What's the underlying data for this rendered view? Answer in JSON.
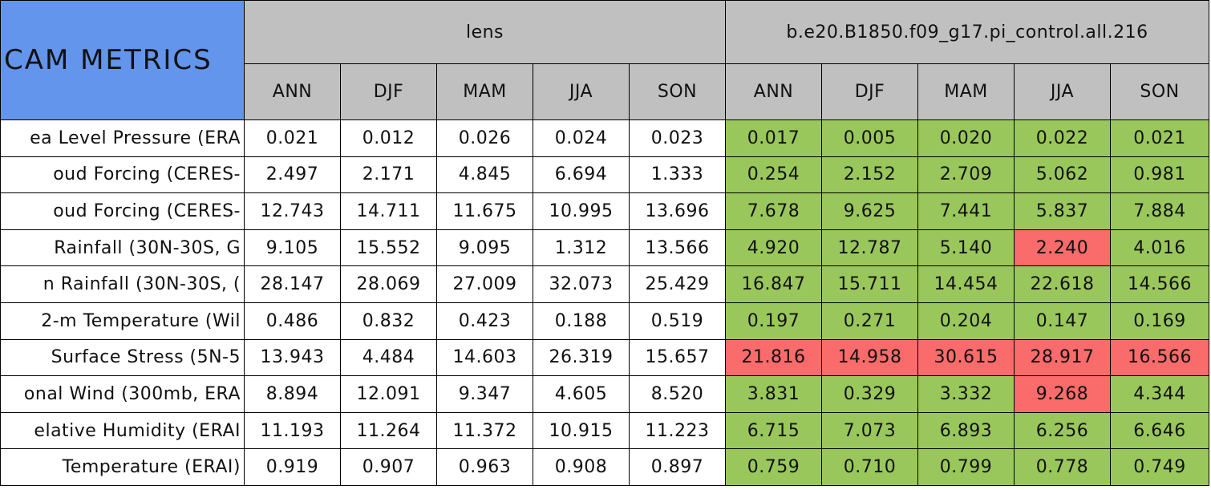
{
  "header": {
    "title": "CAM METRICS",
    "groups": [
      "lens",
      "b.e20.B1850.f09_g17.pi_control.all.216"
    ],
    "seasons": [
      "ANN",
      "DJF",
      "MAM",
      "JJA",
      "SON",
      "ANN",
      "DJF",
      "MAM",
      "JJA",
      "SON"
    ]
  },
  "colors": {
    "title_fill": "#6395ec",
    "header_fill": "#c0c0c0",
    "plain_fill": "#ffffff",
    "good_fill": "#9ac75c",
    "bad_fill": "#fa6b6b"
  },
  "table": {
    "rows": [
      {
        "label": "ea Level Pressure (ERA",
        "values": [
          "0.021",
          "0.012",
          "0.026",
          "0.024",
          "0.023",
          "0.017",
          "0.005",
          "0.020",
          "0.022",
          "0.021"
        ],
        "fills": [
          "plain",
          "plain",
          "plain",
          "plain",
          "plain",
          "good",
          "good",
          "good",
          "good",
          "good"
        ]
      },
      {
        "label": "oud Forcing (CERES-",
        "values": [
          "2.497",
          "2.171",
          "4.845",
          "6.694",
          "1.333",
          "0.254",
          "2.152",
          "2.709",
          "5.062",
          "0.981"
        ],
        "fills": [
          "plain",
          "plain",
          "plain",
          "plain",
          "plain",
          "good",
          "good",
          "good",
          "good",
          "good"
        ]
      },
      {
        "label": "oud Forcing (CERES-",
        "values": [
          "12.743",
          "14.711",
          "11.675",
          "10.995",
          "13.696",
          "7.678",
          "9.625",
          "7.441",
          "5.837",
          "7.884"
        ],
        "fills": [
          "plain",
          "plain",
          "plain",
          "plain",
          "plain",
          "good",
          "good",
          "good",
          "good",
          "good"
        ]
      },
      {
        "label": "Rainfall (30N-30S, G",
        "values": [
          "9.105",
          "15.552",
          "9.095",
          "1.312",
          "13.566",
          "4.920",
          "12.787",
          "5.140",
          "2.240",
          "4.016"
        ],
        "fills": [
          "plain",
          "plain",
          "plain",
          "plain",
          "plain",
          "good",
          "good",
          "good",
          "bad",
          "good"
        ]
      },
      {
        "label": "n Rainfall (30N-30S, (",
        "values": [
          "28.147",
          "28.069",
          "27.009",
          "32.073",
          "25.429",
          "16.847",
          "15.711",
          "14.454",
          "22.618",
          "14.566"
        ],
        "fills": [
          "plain",
          "plain",
          "plain",
          "plain",
          "plain",
          "good",
          "good",
          "good",
          "good",
          "good"
        ]
      },
      {
        "label": "2-m Temperature (Wil",
        "values": [
          "0.486",
          "0.832",
          "0.423",
          "0.188",
          "0.519",
          "0.197",
          "0.271",
          "0.204",
          "0.147",
          "0.169"
        ],
        "fills": [
          "plain",
          "plain",
          "plain",
          "plain",
          "plain",
          "good",
          "good",
          "good",
          "good",
          "good"
        ]
      },
      {
        "label": "Surface Stress (5N-5",
        "values": [
          "13.943",
          "4.484",
          "14.603",
          "26.319",
          "15.657",
          "21.816",
          "14.958",
          "30.615",
          "28.917",
          "16.566"
        ],
        "fills": [
          "plain",
          "plain",
          "plain",
          "plain",
          "plain",
          "bad",
          "bad",
          "bad",
          "bad",
          "bad"
        ]
      },
      {
        "label": "onal Wind (300mb, ERA",
        "values": [
          "8.894",
          "12.091",
          "9.347",
          "4.605",
          "8.520",
          "3.831",
          "0.329",
          "3.332",
          "9.268",
          "4.344"
        ],
        "fills": [
          "plain",
          "plain",
          "plain",
          "plain",
          "plain",
          "good",
          "good",
          "good",
          "bad",
          "good"
        ]
      },
      {
        "label": "elative Humidity (ERAI",
        "values": [
          "11.193",
          "11.264",
          "11.372",
          "10.915",
          "11.223",
          "6.715",
          "7.073",
          "6.893",
          "6.256",
          "6.646"
        ],
        "fills": [
          "plain",
          "plain",
          "plain",
          "plain",
          "plain",
          "good",
          "good",
          "good",
          "good",
          "good"
        ]
      },
      {
        "label": "Temperature (ERAI)",
        "values": [
          "0.919",
          "0.907",
          "0.963",
          "0.908",
          "0.897",
          "0.759",
          "0.710",
          "0.799",
          "0.778",
          "0.749"
        ],
        "fills": [
          "plain",
          "plain",
          "plain",
          "plain",
          "plain",
          "good",
          "good",
          "good",
          "good",
          "good"
        ]
      }
    ]
  }
}
